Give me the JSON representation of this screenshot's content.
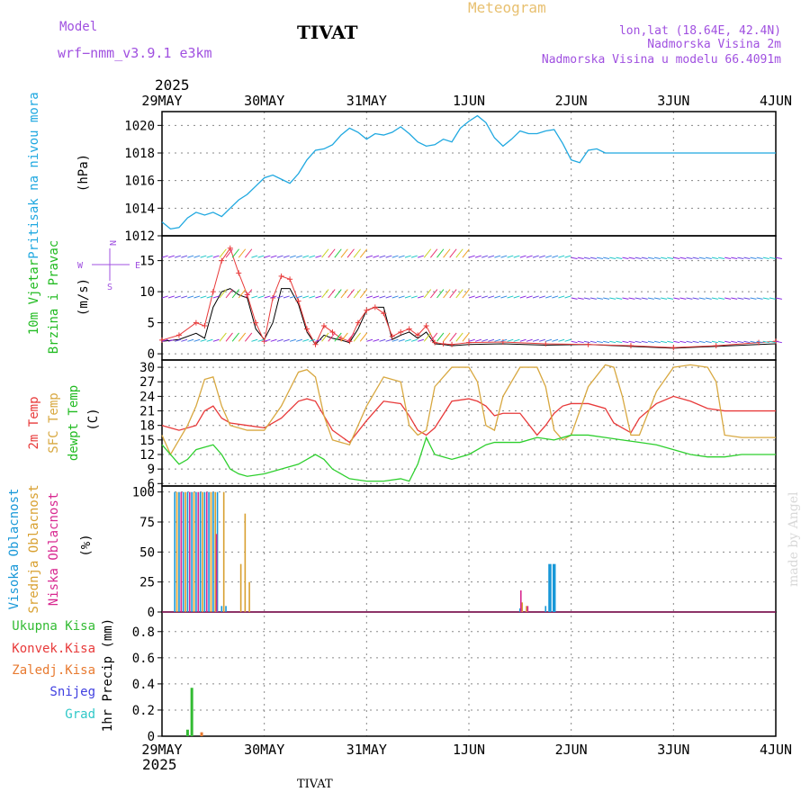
{
  "header": {
    "model_label": "Model",
    "model_name": "wrf−nmm_v3.9.1  e3km",
    "title": "TIVAT",
    "meteogram": "Meteogram",
    "lonlat": "lon,lat (18.64E, 42.4N)",
    "elevation": "Nadmorska Visina 2m",
    "model_elevation": "Nadmorska Visina u modelu 66.4091m",
    "year_top": "2025",
    "year_bottom": "2025",
    "footer_station": "TIVAT",
    "watermark": "made by Angel"
  },
  "colors": {
    "pressure": "#1fa8e0",
    "temp2m": "#e83a3a",
    "sfc_temp": "#d8a840",
    "dewpt": "#2ecf2e",
    "high_cloud": "#1898d8",
    "mid_cloud": "#d8a030",
    "low_cloud": "#d82890",
    "wind_label": "#22bb22",
    "wind_axis_label": "#a050e0",
    "precip_total": "#33bb33",
    "precip_conv": "#e83a3a",
    "precip_frozen": "#e87a30",
    "precip_snow": "#4040e0",
    "precip_hail": "#30c8c8"
  },
  "chart_data": [
    {
      "type": "line",
      "panel": "pressure",
      "title": "Pritisak na nivou mora",
      "ylabel": "(hPa)",
      "ylim": [
        1012,
        1021
      ],
      "yticks": [
        1012,
        1014,
        1016,
        1018,
        1020
      ],
      "x_unit": "hours since 29MAY 00UTC",
      "xlim": [
        0,
        144
      ],
      "xtick_labels": [
        "29MAY",
        "30MAY",
        "31MAY",
        "1JUN",
        "2JUN",
        "3JUN",
        "4JUN"
      ],
      "series": [
        {
          "name": "MSLP",
          "x": [
            0,
            2,
            4,
            6,
            8,
            10,
            12,
            14,
            16,
            18,
            20,
            22,
            24,
            26,
            28,
            30,
            32,
            34,
            36,
            38,
            40,
            42,
            44,
            46,
            48,
            50,
            52,
            54,
            56,
            58,
            60,
            62,
            64,
            66,
            68,
            70,
            72,
            74,
            76,
            78,
            80,
            82,
            84,
            86,
            88,
            90,
            92,
            94,
            96,
            98,
            100,
            102,
            104,
            106,
            108,
            110,
            112,
            114,
            116,
            118,
            120,
            122,
            124,
            126,
            128,
            130,
            132,
            134,
            136,
            138,
            140,
            142,
            144
          ],
          "values": [
            1013.0,
            1012.5,
            1012.6,
            1013.3,
            1013.7,
            1013.5,
            1013.7,
            1013.4,
            1014.0,
            1014.6,
            1015.0,
            1015.6,
            1016.2,
            1016.4,
            1016.1,
            1015.8,
            1016.5,
            1017.5,
            1018.2,
            1018.3,
            1018.6,
            1019.3,
            1019.8,
            1019.5,
            1019.0,
            1019.4,
            1019.3,
            1019.5,
            1019.9,
            1019.4,
            1018.8,
            1018.5,
            1018.6,
            1019.0,
            1018.8,
            1019.8,
            1020.3,
            1020.7,
            1020.2,
            1019.1,
            1018.5,
            1019.0,
            1019.6,
            1019.4,
            1019.4,
            1019.6,
            1019.7,
            1018.7,
            1017.5,
            1017.3,
            1018.2,
            1018.3,
            1018.0,
            1018.0,
            1018.0,
            1018.0,
            1018.0,
            1018.0,
            1018.0,
            1018.0,
            1018.0,
            1018.0,
            1018.0,
            1018.0,
            1018.0,
            1018.0,
            1018.0,
            1018.0,
            1018.0,
            1018.0,
            1018.0,
            1018.0,
            1018.0
          ]
        }
      ]
    },
    {
      "type": "line",
      "panel": "wind",
      "title": "10m Vjetar Brzina i Pravac",
      "ylabel": "(m/s)",
      "ylim": [
        -1,
        19
      ],
      "yticks": [
        0,
        5,
        10,
        15
      ],
      "direction_axis": {
        "top": "N",
        "left": "W",
        "right": "E",
        "bottom": "S"
      },
      "series": [
        {
          "name": "wind speed (model)",
          "x": [
            0,
            4,
            8,
            10,
            12,
            14,
            16,
            18,
            20,
            22,
            24,
            26,
            28,
            30,
            32,
            34,
            36,
            38,
            40,
            42,
            44,
            46,
            48,
            50,
            52,
            54,
            56,
            58,
            60,
            62,
            64,
            66,
            68,
            72,
            80,
            90,
            100,
            110,
            120,
            130,
            140,
            144
          ],
          "values": [
            2.0,
            2.3,
            3.3,
            2.5,
            7.5,
            10.0,
            10.5,
            9.5,
            9.0,
            4.0,
            2.3,
            5.0,
            10.5,
            10.5,
            8.0,
            3.5,
            1.5,
            3.0,
            2.5,
            2.2,
            1.8,
            4.0,
            7.0,
            7.5,
            7.5,
            2.3,
            3.0,
            3.5,
            2.5,
            3.5,
            1.6,
            1.5,
            1.3,
            1.5,
            1.6,
            1.4,
            1.5,
            1.2,
            0.9,
            1.2,
            1.5,
            1.6
          ]
        },
        {
          "name": "wind speed (markers)",
          "x": [
            0,
            4,
            8,
            10,
            12,
            14,
            16,
            18,
            20,
            22,
            24,
            26,
            28,
            30,
            32,
            34,
            36,
            38,
            40,
            42,
            44,
            46,
            48,
            50,
            52,
            54,
            56,
            58,
            60,
            62,
            64,
            66,
            68,
            72,
            80,
            90,
            100,
            110,
            120,
            130,
            140,
            144
          ],
          "values": [
            2.2,
            3.0,
            5.0,
            4.5,
            10.0,
            15.0,
            17.0,
            13.0,
            9.5,
            5.0,
            2.0,
            9.0,
            12.5,
            12.0,
            8.5,
            4.0,
            1.5,
            4.5,
            3.5,
            2.5,
            2.0,
            5.0,
            7.0,
            7.5,
            6.5,
            2.8,
            3.5,
            4.0,
            3.0,
            4.5,
            1.8,
            1.6,
            1.5,
            1.8,
            1.9,
            1.6,
            1.5,
            1.3,
            1.0,
            1.3,
            1.8,
            2.0
          ]
        }
      ]
    },
    {
      "type": "line",
      "panel": "temperature",
      "titles": [
        "2m Temp",
        "SFC Temp",
        "dewpt Temp"
      ],
      "ylabel": "(C)",
      "ylim": [
        5.5,
        31.5
      ],
      "yticks": [
        6,
        9,
        12,
        15,
        18,
        21,
        24,
        27,
        30
      ],
      "series": [
        {
          "name": "2m Temp",
          "x": [
            0,
            4,
            8,
            10,
            12,
            14,
            16,
            20,
            24,
            28,
            32,
            34,
            36,
            38,
            40,
            44,
            48,
            52,
            56,
            58,
            60,
            62,
            64,
            68,
            72,
            74,
            76,
            78,
            80,
            84,
            88,
            90,
            92,
            94,
            96,
            100,
            104,
            106,
            108,
            110,
            112,
            116,
            120,
            124,
            128,
            132,
            136,
            138,
            140,
            144
          ],
          "values": [
            18,
            17,
            18,
            21,
            22,
            19.5,
            18.5,
            18,
            17.5,
            19.5,
            23,
            23.5,
            23,
            20,
            17,
            14.5,
            19,
            23,
            22.5,
            20,
            17,
            16,
            17.5,
            23,
            23.5,
            23,
            22,
            20,
            20.5,
            20.5,
            16,
            18,
            20.5,
            22,
            22.5,
            22.5,
            21.5,
            18.5,
            17.5,
            16.5,
            19.5,
            22.5,
            24,
            23,
            21.5,
            21,
            21,
            21,
            21,
            21
          ]
        },
        {
          "name": "SFC Temp",
          "x": [
            0,
            2,
            4,
            6,
            8,
            10,
            12,
            14,
            16,
            20,
            24,
            28,
            32,
            34,
            36,
            38,
            40,
            44,
            48,
            52,
            56,
            58,
            60,
            62,
            64,
            68,
            72,
            74,
            76,
            78,
            80,
            84,
            88,
            90,
            92,
            94,
            96,
            100,
            104,
            106,
            108,
            110,
            112,
            116,
            120,
            124,
            128,
            130,
            132,
            136,
            140,
            144
          ],
          "values": [
            16,
            12,
            15,
            18,
            22,
            27.5,
            28,
            22,
            18,
            17,
            17,
            22,
            29,
            29.5,
            28,
            20,
            15,
            14,
            22,
            28,
            27,
            18,
            16,
            17,
            26,
            30,
            30,
            27,
            18,
            17,
            24,
            30,
            30,
            26,
            17,
            15,
            16,
            26,
            30.5,
            30,
            24,
            16,
            16,
            25,
            30,
            30.5,
            30,
            27,
            16,
            15.5,
            15.5,
            15.5
          ]
        },
        {
          "name": "dewpt Temp",
          "x": [
            0,
            2,
            4,
            6,
            8,
            10,
            12,
            14,
            16,
            18,
            20,
            24,
            28,
            32,
            34,
            36,
            38,
            40,
            44,
            48,
            52,
            56,
            58,
            60,
            62,
            64,
            68,
            72,
            76,
            78,
            80,
            84,
            88,
            92,
            96,
            100,
            104,
            108,
            112,
            116,
            120,
            124,
            128,
            132,
            136,
            140,
            144
          ],
          "values": [
            14,
            12,
            10,
            11,
            13,
            13.5,
            14,
            12,
            9,
            8,
            7.5,
            8,
            9,
            10,
            11,
            12,
            11,
            9,
            7,
            6.5,
            6.5,
            7,
            6.5,
            10,
            15.5,
            12,
            11,
            12,
            14,
            14.5,
            14.5,
            14.5,
            15.5,
            15,
            16,
            16,
            15.5,
            15,
            14.5,
            14,
            13,
            12,
            11.5,
            11.5,
            12,
            12,
            12
          ]
        }
      ]
    },
    {
      "type": "bar",
      "panel": "cloud",
      "titles": [
        "Visoka Oblacnost",
        "Srednja Oblacnost",
        "Niska Oblacnost"
      ],
      "ylabel": "(%)",
      "ylim": [
        0,
        105
      ],
      "yticks": [
        0,
        25,
        50,
        75,
        100
      ],
      "series": [
        {
          "name": "Visoka Oblacnost",
          "x": [
            3,
            4,
            5,
            6,
            7,
            8,
            9,
            10,
            11,
            12,
            13,
            14,
            15,
            84,
            90,
            91,
            92
          ],
          "values": [
            100,
            100,
            100,
            100,
            100,
            100,
            100,
            100,
            100,
            100,
            100,
            5,
            5,
            3,
            5,
            40,
            40
          ]
        },
        {
          "name": "Srednja Oblacnost",
          "x": [
            3.5,
            5.5,
            7.5,
            9.5,
            11.5,
            12.5,
            14.5,
            18.5,
            19.5,
            20.5,
            84.5,
            85.5
          ],
          "values": [
            100,
            100,
            100,
            100,
            100,
            100,
            100,
            40,
            82,
            25,
            8,
            5
          ]
        },
        {
          "name": "Niska Oblacnost",
          "x": [
            4.5,
            6.5,
            8.5,
            10.5,
            12.8,
            84.2,
            85.8
          ],
          "values": [
            100,
            100,
            100,
            100,
            65,
            18,
            5
          ]
        }
      ]
    },
    {
      "type": "bar",
      "panel": "precip",
      "titles": [
        "Ukupna Kisa",
        "Konvek.Kisa",
        "Zaledj.Kisa",
        "Snijeg",
        "Grad"
      ],
      "ylabel": "1hr Precip (mm)",
      "ylim": [
        0,
        0.95
      ],
      "yticks": [
        0,
        0.2,
        0.4,
        0.6,
        0.8
      ],
      "series": [
        {
          "name": "Ukupna Kisa",
          "x": [
            6,
            7
          ],
          "values": [
            0.05,
            0.37
          ]
        },
        {
          "name": "Zaledj.Kisa",
          "x": [
            9.3
          ],
          "values": [
            0.03
          ]
        }
      ]
    }
  ]
}
